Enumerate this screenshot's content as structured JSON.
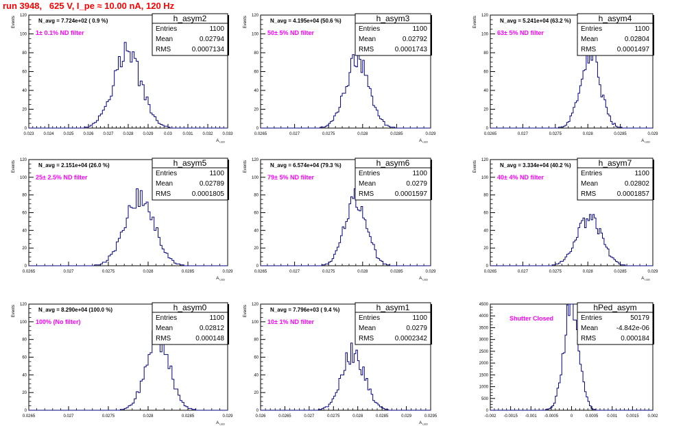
{
  "page": {
    "title": "run 3948,   625 V, I_pe ≈ 10.00 nA, 120 Hz"
  },
  "colors": {
    "title": "#ff0000",
    "line": "#000080",
    "note": "#ff00ff",
    "axis": "#000000"
  },
  "chart_data": [
    {
      "type": "histogram",
      "name": "h_asym2",
      "navg": "N_avg = 7.724e+02 ( 0.9 %)",
      "note": "1± 0.1% ND filter",
      "stats": [
        [
          "Entries",
          "1100"
        ],
        [
          "Mean",
          "0.02794"
        ],
        [
          "RMS",
          "0.0007134"
        ]
      ],
      "xlabel": "A_LED",
      "ylabel": "Events",
      "xlim": [
        0.023,
        0.033
      ],
      "ylim": [
        0,
        120
      ],
      "xticks": [
        "0.023",
        "0.024",
        "0.025",
        "0.026",
        "0.027",
        "0.028",
        "0.029",
        "0.03",
        "0.031",
        "0.032",
        "0.033"
      ],
      "yticks": [
        "0",
        "20",
        "40",
        "60",
        "80",
        "100",
        "120"
      ],
      "mean": 0.02794,
      "sigma": 0.00071,
      "peak": 80
    },
    {
      "type": "histogram",
      "name": "h_asym3",
      "navg": "N_avg = 4.195e+04 (50.6 %)",
      "note": "50± 5% ND filter",
      "stats": [
        [
          "Entries",
          "1100"
        ],
        [
          "Mean",
          "0.02792"
        ],
        [
          "RMS",
          "0.0001743"
        ]
      ],
      "xlabel": "A_LED",
      "ylabel": "Events",
      "xlim": [
        0.0265,
        0.029
      ],
      "ylim": [
        0,
        120
      ],
      "xticks": [
        "0.0265",
        "0.027",
        "0.0275",
        "0.028",
        "0.0285",
        "0.029"
      ],
      "yticks": [
        "0",
        "20",
        "40",
        "60",
        "80",
        "100",
        "120"
      ],
      "mean": 0.02792,
      "sigma": 0.000174,
      "peak": 72
    },
    {
      "type": "histogram",
      "name": "h_asym4",
      "navg": "N_avg = 5.241e+04 (63.2 %)",
      "note": "63± 5% ND filter",
      "stats": [
        [
          "Entries",
          "1100"
        ],
        [
          "Mean",
          "0.02804"
        ],
        [
          "RMS",
          "0.0001497"
        ]
      ],
      "xlabel": "A_LED",
      "ylabel": "Events",
      "xlim": [
        0.0265,
        0.029
      ],
      "ylim": [
        0,
        120
      ],
      "xticks": [
        "0.0265",
        "0.027",
        "0.0275",
        "0.028",
        "0.0285",
        "0.029"
      ],
      "yticks": [
        "0",
        "20",
        "40",
        "60",
        "80",
        "100",
        "120"
      ],
      "mean": 0.02804,
      "sigma": 0.00015,
      "peak": 82
    },
    {
      "type": "histogram",
      "name": "h_asym5",
      "navg": "N_avg = 2.151e+04 (26.0 %)",
      "note": "25± 2.5% ND filter",
      "stats": [
        [
          "Entries",
          "1100"
        ],
        [
          "Mean",
          "0.02789"
        ],
        [
          "RMS",
          "0.0001805"
        ]
      ],
      "xlabel": "A_LED",
      "ylabel": "Events",
      "xlim": [
        0.0265,
        0.029
      ],
      "ylim": [
        0,
        120
      ],
      "xticks": [
        "0.0265",
        "0.027",
        "0.0275",
        "0.028",
        "0.0285",
        "0.029"
      ],
      "yticks": [
        "0",
        "20",
        "40",
        "60",
        "80",
        "100",
        "120"
      ],
      "mean": 0.02789,
      "sigma": 0.00018,
      "peak": 80
    },
    {
      "type": "histogram",
      "name": "h_asym6",
      "navg": "N_avg = 6.574e+04 (79.3 %)",
      "note": "79± 5% ND filter",
      "stats": [
        [
          "Entries",
          "1100"
        ],
        [
          "Mean",
          "0.0279"
        ],
        [
          "RMS",
          "0.0001597"
        ]
      ],
      "xlabel": "A_LED",
      "ylabel": "Events",
      "xlim": [
        0.0265,
        0.029
      ],
      "ylim": [
        0,
        120
      ],
      "xticks": [
        "0.0265",
        "0.027",
        "0.0275",
        "0.028",
        "0.0285",
        "0.029"
      ],
      "yticks": [
        "0",
        "20",
        "40",
        "60",
        "80",
        "100",
        "120"
      ],
      "mean": 0.0279,
      "sigma": 0.00016,
      "peak": 76
    },
    {
      "type": "histogram",
      "name": "h_asym7",
      "navg": "N_avg = 3.334e+04 (40.2 %)",
      "note": "40± 4% ND filter",
      "stats": [
        [
          "Entries",
          "1100"
        ],
        [
          "Mean",
          "0.02802"
        ],
        [
          "RMS",
          "0.0001857"
        ]
      ],
      "xlabel": "A_LED",
      "ylabel": "Events",
      "xlim": [
        0.0265,
        0.029
      ],
      "ylim": [
        0,
        120
      ],
      "xticks": [
        "0.0265",
        "0.027",
        "0.0275",
        "0.028",
        "0.0285",
        "0.029"
      ],
      "yticks": [
        "0",
        "20",
        "40",
        "60",
        "80",
        "100",
        "120"
      ],
      "mean": 0.02802,
      "sigma": 0.000186,
      "peak": 56
    },
    {
      "type": "histogram",
      "name": "h_asym0",
      "navg": "N_avg = 8.290e+04 (100.0 %)",
      "note": "100% (No filter)",
      "stats": [
        [
          "Entries",
          "1100"
        ],
        [
          "Mean",
          "0.02812"
        ],
        [
          "RMS",
          "0.000148"
        ]
      ],
      "xlabel": "A_LED",
      "ylabel": "Events",
      "xlim": [
        0.0265,
        0.029
      ],
      "ylim": [
        0,
        120
      ],
      "xticks": [
        "0.0265",
        "0.027",
        "0.0275",
        "0.028",
        "0.0285",
        "0.029"
      ],
      "yticks": [
        "0",
        "20",
        "40",
        "60",
        "80",
        "100",
        "120"
      ],
      "mean": 0.02812,
      "sigma": 0.000148,
      "peak": 82
    },
    {
      "type": "histogram",
      "name": "h_asym1",
      "navg": "N_avg = 7.796e+03 ( 9.4 %)",
      "note": "10± 1% ND filter",
      "stats": [
        [
          "Entries",
          "1100"
        ],
        [
          "Mean",
          "0.0279"
        ],
        [
          "RMS",
          "0.0002342"
        ]
      ],
      "xlabel": "A_LED",
      "ylabel": "Events",
      "xlim": [
        0.026,
        0.0295
      ],
      "ylim": [
        0,
        120
      ],
      "xticks": [
        "0.026",
        "0.0265",
        "0.027",
        "0.0275",
        "0.028",
        "0.0285",
        "0.029",
        "0.0295"
      ],
      "yticks": [
        "0",
        "20",
        "40",
        "60",
        "80",
        "100",
        "120"
      ],
      "mean": 0.0279,
      "sigma": 0.000234,
      "peak": 67
    },
    {
      "type": "histogram",
      "name": "hPed_asym",
      "navg": "",
      "note": "Shutter Closed",
      "stats": [
        [
          "Entries",
          "50179"
        ],
        [
          "Mean",
          "-4.842e-06"
        ],
        [
          "RMS",
          "0.000184"
        ]
      ],
      "xlabel": "",
      "ylabel": "",
      "xlim": [
        -0.002,
        0.002
      ],
      "ylim": [
        0,
        4500
      ],
      "xticks": [
        "-0.002",
        "-0.0015",
        "-0.001",
        "-0.0005",
        "0",
        "0.0005",
        "0.001",
        "0.0015",
        "0.002"
      ],
      "yticks": [
        "0",
        "500",
        "1000",
        "1500",
        "2000",
        "2500",
        "3000",
        "3500",
        "4000",
        "4500"
      ],
      "mean": -4.842e-06,
      "sigma": 0.000184,
      "peak": 4380
    }
  ]
}
